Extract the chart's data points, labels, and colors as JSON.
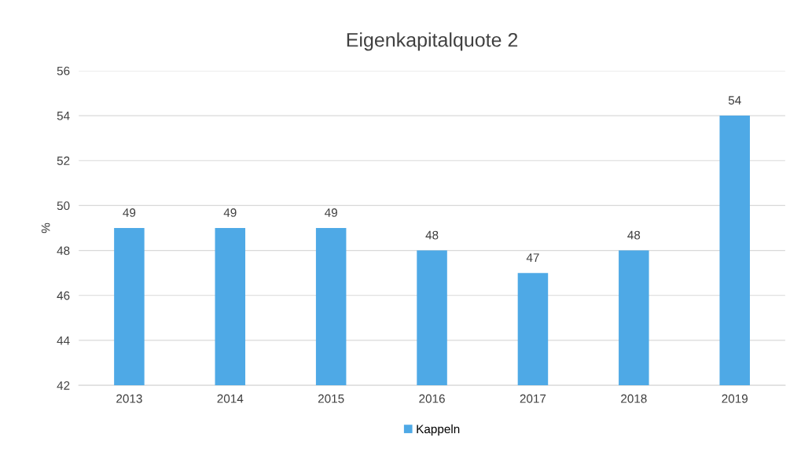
{
  "chart_data": {
    "type": "bar",
    "title": "Eigenkapitalquote 2",
    "ylabel": "%",
    "categories": [
      "2013",
      "2014",
      "2015",
      "2016",
      "2017",
      "2018",
      "2019"
    ],
    "series": [
      {
        "name": "Kappeln",
        "color": "#4ea9e6",
        "values": [
          49,
          49,
          49,
          48,
          47,
          48,
          54
        ]
      }
    ],
    "ylim": [
      42,
      56
    ],
    "yticks": [
      42,
      44,
      46,
      48,
      50,
      52,
      54,
      56
    ],
    "grid": "y",
    "legend": "bottom",
    "data_labels": true
  }
}
